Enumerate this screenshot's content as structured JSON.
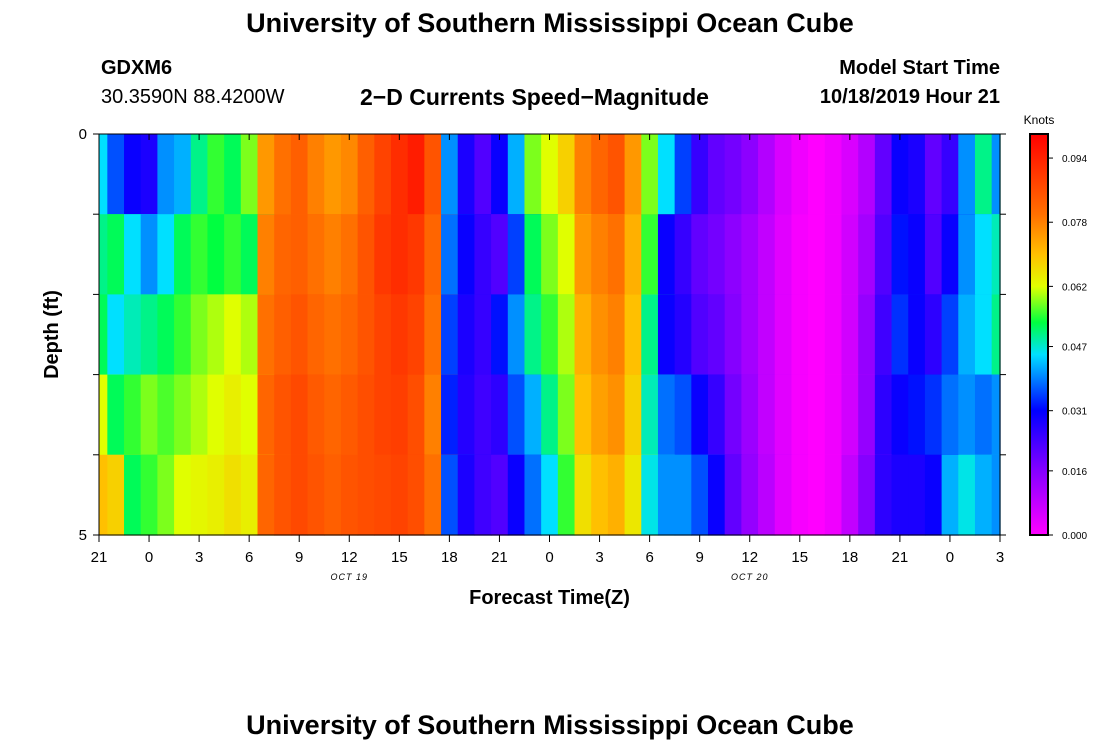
{
  "page": {
    "title_top": "University of Southern Mississippi Ocean Cube",
    "title_bottom": "University of Southern Mississippi Ocean Cube",
    "station_id": "GDXM6",
    "station_coords": "30.3590N 88.4200W",
    "model_start_label": "Model Start Time",
    "model_start_value": "10/18/2019 Hour 21"
  },
  "chart_data": {
    "type": "heatmap",
    "title": "2−D Currents Speed−Magnitude",
    "xlabel": "Forecast Time(Z)",
    "ylabel": "Depth (ft)",
    "x_range": [
      0,
      54
    ],
    "y_range": [
      0,
      5
    ],
    "x_ticks": [
      {
        "x": 0,
        "label": "21"
      },
      {
        "x": 3,
        "label": "0"
      },
      {
        "x": 6,
        "label": "3"
      },
      {
        "x": 9,
        "label": "6"
      },
      {
        "x": 12,
        "label": "9"
      },
      {
        "x": 15,
        "label": "12"
      },
      {
        "x": 18,
        "label": "15"
      },
      {
        "x": 21,
        "label": "18"
      },
      {
        "x": 24,
        "label": "21"
      },
      {
        "x": 27,
        "label": "0"
      },
      {
        "x": 30,
        "label": "3"
      },
      {
        "x": 33,
        "label": "6"
      },
      {
        "x": 36,
        "label": "9"
      },
      {
        "x": 39,
        "label": "12"
      },
      {
        "x": 42,
        "label": "15"
      },
      {
        "x": 45,
        "label": "18"
      },
      {
        "x": 48,
        "label": "21"
      },
      {
        "x": 51,
        "label": "0"
      },
      {
        "x": 54,
        "label": "3"
      }
    ],
    "date_labels": [
      {
        "x": 15,
        "label": "OCT 19"
      },
      {
        "x": 39,
        "label": "OCT 20"
      }
    ],
    "y_ticks": [
      {
        "y": 0,
        "label": "0"
      },
      {
        "y": 1,
        "label": ""
      },
      {
        "y": 2,
        "label": ""
      },
      {
        "y": 3,
        "label": ""
      },
      {
        "y": 4,
        "label": ""
      },
      {
        "y": 5,
        "label": "5"
      }
    ],
    "colorbar": {
      "unit": "Knots",
      "min": 0.0,
      "max": 0.1,
      "tick_values": [
        0.0,
        0.016,
        0.031,
        0.047,
        0.062,
        0.078,
        0.094
      ],
      "tick_labels": [
        "0.000",
        "0.016",
        "0.031",
        "0.047",
        "0.062",
        "0.078",
        "0.094"
      ]
    },
    "depth_levels": [
      0,
      1,
      2,
      3,
      4,
      5
    ],
    "time_hours": [
      0,
      1,
      2,
      3,
      4,
      5,
      6,
      7,
      8,
      9,
      10,
      11,
      12,
      13,
      14,
      15,
      16,
      17,
      18,
      19,
      20,
      21,
      22,
      23,
      24,
      25,
      26,
      27,
      28,
      29,
      30,
      31,
      32,
      33,
      34,
      35,
      36,
      37,
      38,
      39,
      40,
      41,
      42,
      43,
      44,
      45,
      46,
      47,
      48,
      49,
      50,
      51,
      52,
      53,
      54
    ],
    "speed_knots": [
      [
        0.045,
        0.036,
        0.03,
        0.028,
        0.04,
        0.042,
        0.05,
        0.055,
        0.052,
        0.058,
        0.075,
        0.08,
        0.083,
        0.078,
        0.075,
        0.077,
        0.083,
        0.088,
        0.092,
        0.095,
        0.085,
        0.04,
        0.028,
        0.022,
        0.03,
        0.042,
        0.058,
        0.062,
        0.068,
        0.078,
        0.082,
        0.085,
        0.075,
        0.058,
        0.045,
        0.035,
        0.025,
        0.02,
        0.018,
        0.015,
        0.01,
        0.005,
        0.002,
        0.0,
        0.002,
        0.005,
        0.01,
        0.02,
        0.03,
        0.028,
        0.02,
        0.025,
        0.04,
        0.05,
        0.04
      ],
      [
        0.05,
        0.052,
        0.045,
        0.04,
        0.045,
        0.052,
        0.055,
        0.053,
        0.055,
        0.052,
        0.078,
        0.082,
        0.083,
        0.08,
        0.078,
        0.08,
        0.085,
        0.09,
        0.092,
        0.09,
        0.082,
        0.038,
        0.03,
        0.025,
        0.022,
        0.035,
        0.052,
        0.058,
        0.062,
        0.075,
        0.078,
        0.08,
        0.072,
        0.055,
        0.03,
        0.025,
        0.02,
        0.018,
        0.015,
        0.012,
        0.008,
        0.004,
        0.001,
        0.0,
        0.002,
        0.006,
        0.012,
        0.022,
        0.032,
        0.03,
        0.022,
        0.03,
        0.04,
        0.045,
        0.048
      ],
      [
        0.052,
        0.045,
        0.048,
        0.05,
        0.052,
        0.055,
        0.058,
        0.06,
        0.062,
        0.06,
        0.08,
        0.083,
        0.085,
        0.082,
        0.08,
        0.082,
        0.085,
        0.088,
        0.09,
        0.088,
        0.08,
        0.035,
        0.028,
        0.025,
        0.032,
        0.04,
        0.05,
        0.055,
        0.06,
        0.072,
        0.076,
        0.078,
        0.07,
        0.05,
        0.03,
        0.027,
        0.022,
        0.02,
        0.016,
        0.012,
        0.008,
        0.004,
        0.001,
        0.0,
        0.002,
        0.006,
        0.014,
        0.024,
        0.034,
        0.03,
        0.026,
        0.035,
        0.042,
        0.045,
        0.05
      ],
      [
        0.062,
        0.052,
        0.055,
        0.058,
        0.056,
        0.058,
        0.06,
        0.062,
        0.064,
        0.062,
        0.082,
        0.085,
        0.087,
        0.084,
        0.082,
        0.084,
        0.086,
        0.088,
        0.089,
        0.086,
        0.078,
        0.033,
        0.027,
        0.024,
        0.026,
        0.036,
        0.042,
        0.05,
        0.058,
        0.07,
        0.074,
        0.076,
        0.068,
        0.048,
        0.038,
        0.036,
        0.03,
        0.025,
        0.018,
        0.013,
        0.008,
        0.004,
        0.001,
        0.0,
        0.002,
        0.006,
        0.014,
        0.026,
        0.03,
        0.032,
        0.034,
        0.038,
        0.04,
        0.038,
        0.04
      ],
      [
        0.07,
        0.068,
        0.052,
        0.055,
        0.058,
        0.062,
        0.063,
        0.064,
        0.066,
        0.064,
        0.082,
        0.085,
        0.087,
        0.085,
        0.083,
        0.085,
        0.086,
        0.087,
        0.088,
        0.086,
        0.08,
        0.036,
        0.028,
        0.024,
        0.022,
        0.03,
        0.038,
        0.045,
        0.055,
        0.066,
        0.07,
        0.072,
        0.065,
        0.046,
        0.04,
        0.04,
        0.036,
        0.03,
        0.02,
        0.014,
        0.009,
        0.004,
        0.001,
        0.0,
        0.002,
        0.008,
        0.016,
        0.026,
        0.028,
        0.028,
        0.03,
        0.042,
        0.046,
        0.042,
        0.04
      ],
      [
        0.078,
        0.075,
        0.058,
        0.06,
        0.065,
        0.066,
        0.065,
        0.06,
        0.058,
        0.05,
        0.082,
        0.086,
        0.088,
        0.087,
        0.085,
        0.086,
        0.086,
        0.087,
        0.088,
        0.086,
        0.078,
        0.04,
        0.026,
        0.022,
        0.02,
        0.03,
        0.04,
        0.044,
        0.05,
        0.06,
        0.066,
        0.068,
        0.064,
        0.048,
        0.042,
        0.042,
        0.04,
        0.032,
        0.022,
        0.014,
        0.009,
        0.004,
        0.001,
        0.0,
        0.002,
        0.008,
        0.016,
        0.026,
        0.028,
        0.027,
        0.028,
        0.046,
        0.052,
        0.045,
        0.042
      ]
    ]
  }
}
